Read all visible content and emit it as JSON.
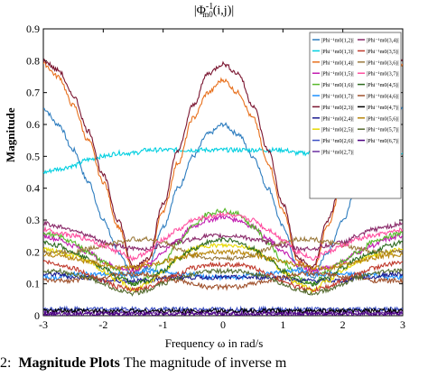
{
  "chart_data": {
    "type": "line",
    "title": "|Φ⁻¹ₘₒ(i,j)|",
    "title_text": "|Φ",
    "title_sup": "-1",
    "title_sub": "m0",
    "title_tail": "(i,j)|",
    "xlabel": "Frequency ω in rad/s",
    "ylabel": "Magnitude",
    "xlim": [
      -3,
      3
    ],
    "ylim": [
      0,
      0.9
    ],
    "xticks": [
      "-3",
      "-2",
      "-1",
      "0",
      "1",
      "2",
      "3"
    ],
    "yticks": [
      "0",
      "0.1",
      "0.2",
      "0.3",
      "0.4",
      "0.5",
      "0.6",
      "0.7",
      "0.8",
      "0.9"
    ],
    "grid": false,
    "legend_position": "top-right",
    "x": [
      -3,
      -2.75,
      -2.5,
      -2.25,
      -2,
      -1.75,
      -1.5,
      -1.25,
      -1,
      -0.75,
      -0.5,
      -0.25,
      0,
      0.25,
      0.5,
      0.75,
      1,
      1.25,
      1.5,
      1.75,
      2,
      2.25,
      2.5,
      2.75,
      3
    ],
    "series": [
      {
        "name": "|Phi⁻¹m0(1,2)|",
        "color": "#2e7dbf",
        "values": [
          0.65,
          0.6,
          0.52,
          0.42,
          0.3,
          0.2,
          0.12,
          0.15,
          0.28,
          0.4,
          0.5,
          0.57,
          0.6,
          0.57,
          0.5,
          0.4,
          0.28,
          0.15,
          0.12,
          0.2,
          0.3,
          0.42,
          0.52,
          0.6,
          0.65
        ]
      },
      {
        "name": "|Phi⁻¹m0(1,3)|",
        "color": "#00cfe0",
        "values": [
          0.45,
          0.46,
          0.47,
          0.49,
          0.5,
          0.51,
          0.51,
          0.52,
          0.52,
          0.52,
          0.52,
          0.52,
          0.52,
          0.52,
          0.52,
          0.52,
          0.52,
          0.51,
          0.51,
          0.52,
          0.52,
          0.51,
          0.51,
          0.51,
          0.51
        ]
      },
      {
        "name": "|Phi⁻¹m0(1,4)|",
        "color": "#e8701c",
        "values": [
          0.79,
          0.75,
          0.66,
          0.55,
          0.42,
          0.28,
          0.14,
          0.17,
          0.33,
          0.48,
          0.62,
          0.7,
          0.74,
          0.7,
          0.62,
          0.48,
          0.33,
          0.17,
          0.14,
          0.28,
          0.42,
          0.55,
          0.66,
          0.75,
          0.79
        ]
      },
      {
        "name": "|Phi⁻¹m0(1,5)|",
        "color": "#c21bb0",
        "values": [
          0.25,
          0.24,
          0.22,
          0.2,
          0.17,
          0.15,
          0.14,
          0.16,
          0.2,
          0.24,
          0.28,
          0.3,
          0.31,
          0.3,
          0.28,
          0.24,
          0.2,
          0.16,
          0.14,
          0.15,
          0.17,
          0.2,
          0.22,
          0.24,
          0.25
        ]
      },
      {
        "name": "|Phi⁻¹m0(1,6)|",
        "color": "#58b82a",
        "values": [
          0.26,
          0.25,
          0.23,
          0.2,
          0.17,
          0.14,
          0.1,
          0.12,
          0.17,
          0.23,
          0.28,
          0.32,
          0.33,
          0.32,
          0.28,
          0.23,
          0.17,
          0.12,
          0.1,
          0.14,
          0.17,
          0.2,
          0.23,
          0.25,
          0.26
        ]
      },
      {
        "name": "|Phi⁻¹m0(1,7)|",
        "color": "#1e90ff",
        "values": [
          0.12,
          0.12,
          0.13,
          0.13,
          0.13,
          0.13,
          0.13,
          0.14,
          0.14,
          0.13,
          0.13,
          0.12,
          0.12,
          0.12,
          0.13,
          0.13,
          0.14,
          0.14,
          0.13,
          0.13,
          0.13,
          0.13,
          0.13,
          0.12,
          0.12
        ]
      },
      {
        "name": "|Phi⁻¹m0(2,3)|",
        "color": "#7a1530",
        "values": [
          0.8,
          0.77,
          0.69,
          0.58,
          0.44,
          0.3,
          0.15,
          0.18,
          0.35,
          0.52,
          0.66,
          0.76,
          0.79,
          0.76,
          0.66,
          0.52,
          0.35,
          0.18,
          0.15,
          0.3,
          0.44,
          0.58,
          0.69,
          0.77,
          0.8
        ]
      },
      {
        "name": "|Phi⁻¹m0(2,4)|",
        "color": "#1a1a8f",
        "values": [
          0.13,
          0.13,
          0.12,
          0.12,
          0.11,
          0.11,
          0.11,
          0.11,
          0.12,
          0.12,
          0.12,
          0.12,
          0.12,
          0.12,
          0.12,
          0.12,
          0.12,
          0.11,
          0.11,
          0.11,
          0.11,
          0.12,
          0.12,
          0.13,
          0.13
        ]
      },
      {
        "name": "|Phi⁻¹m0(2,5)|",
        "color": "#e6d800",
        "values": [
          0.21,
          0.2,
          0.19,
          0.17,
          0.14,
          0.11,
          0.08,
          0.1,
          0.14,
          0.18,
          0.21,
          0.22,
          0.22,
          0.22,
          0.21,
          0.18,
          0.14,
          0.1,
          0.08,
          0.11,
          0.14,
          0.17,
          0.19,
          0.2,
          0.21
        ]
      },
      {
        "name": "|Phi⁻¹m0(2,6)|",
        "color": "#3b4fc4",
        "values": [
          0.02,
          0.02,
          0.02,
          0.02,
          0.02,
          0.02,
          0.02,
          0.02,
          0.02,
          0.02,
          0.02,
          0.02,
          0.02,
          0.02,
          0.02,
          0.02,
          0.02,
          0.02,
          0.02,
          0.02,
          0.02,
          0.02,
          0.02,
          0.02,
          0.02
        ]
      },
      {
        "name": "|Phi⁻¹m0(2,7)|",
        "color": "#6b2fa0",
        "values": [
          0.01,
          0.01,
          0.01,
          0.01,
          0.01,
          0.01,
          0.01,
          0.01,
          0.01,
          0.01,
          0.01,
          0.01,
          0.01,
          0.01,
          0.01,
          0.01,
          0.01,
          0.01,
          0.01,
          0.01,
          0.01,
          0.01,
          0.01,
          0.01,
          0.01
        ]
      },
      {
        "name": "|Phi⁻¹m0(3,4)|",
        "color": "#8a2a6a",
        "values": [
          0.29,
          0.28,
          0.27,
          0.25,
          0.23,
          0.22,
          0.21,
          0.21,
          0.22,
          0.23,
          0.24,
          0.25,
          0.25,
          0.25,
          0.24,
          0.23,
          0.22,
          0.21,
          0.21,
          0.22,
          0.23,
          0.25,
          0.27,
          0.28,
          0.29
        ]
      },
      {
        "name": "|Phi⁻¹m0(3,5)|",
        "color": "#c0392b",
        "values": [
          0.17,
          0.16,
          0.15,
          0.13,
          0.11,
          0.09,
          0.08,
          0.09,
          0.11,
          0.13,
          0.15,
          0.16,
          0.16,
          0.16,
          0.15,
          0.13,
          0.11,
          0.09,
          0.08,
          0.09,
          0.11,
          0.13,
          0.15,
          0.16,
          0.17
        ]
      },
      {
        "name": "|Phi⁻¹m0(3,6)|",
        "color": "#9b7a3c",
        "values": [
          0.2,
          0.2,
          0.2,
          0.21,
          0.22,
          0.23,
          0.24,
          0.24,
          0.23,
          0.21,
          0.19,
          0.18,
          0.18,
          0.18,
          0.19,
          0.21,
          0.23,
          0.24,
          0.24,
          0.23,
          0.22,
          0.21,
          0.2,
          0.2,
          0.2
        ]
      },
      {
        "name": "|Phi⁻¹m0(3,7)|",
        "color": "#ff4fa0",
        "values": [
          0.27,
          0.26,
          0.25,
          0.24,
          0.22,
          0.2,
          0.18,
          0.2,
          0.24,
          0.27,
          0.3,
          0.31,
          0.32,
          0.31,
          0.3,
          0.27,
          0.24,
          0.2,
          0.18,
          0.2,
          0.22,
          0.24,
          0.25,
          0.26,
          0.27
        ]
      },
      {
        "name": "|Phi⁻¹m0(4,5)|",
        "color": "#2d6a1f",
        "values": [
          0.23,
          0.22,
          0.2,
          0.18,
          0.15,
          0.12,
          0.1,
          0.11,
          0.14,
          0.18,
          0.21,
          0.23,
          0.24,
          0.23,
          0.21,
          0.18,
          0.14,
          0.11,
          0.1,
          0.12,
          0.15,
          0.18,
          0.2,
          0.22,
          0.23
        ]
      },
      {
        "name": "|Phi⁻¹m0(4,6)|",
        "color": "#a0522d",
        "values": [
          0.11,
          0.11,
          0.11,
          0.12,
          0.12,
          0.13,
          0.13,
          0.13,
          0.12,
          0.11,
          0.1,
          0.09,
          0.09,
          0.09,
          0.1,
          0.11,
          0.12,
          0.13,
          0.13,
          0.13,
          0.12,
          0.12,
          0.11,
          0.11,
          0.11
        ]
      },
      {
        "name": "|Phi⁻¹m0(4,7)|",
        "color": "#000000",
        "values": [
          0.015,
          0.015,
          0.015,
          0.015,
          0.015,
          0.015,
          0.015,
          0.015,
          0.015,
          0.015,
          0.015,
          0.015,
          0.015,
          0.015,
          0.015,
          0.015,
          0.015,
          0.015,
          0.015,
          0.015,
          0.015,
          0.015,
          0.015,
          0.015,
          0.015
        ]
      },
      {
        "name": "|Phi⁻¹m0(5,6)|",
        "color": "#b8860b",
        "values": [
          0.19,
          0.19,
          0.18,
          0.17,
          0.16,
          0.15,
          0.15,
          0.16,
          0.17,
          0.18,
          0.19,
          0.2,
          0.2,
          0.2,
          0.19,
          0.18,
          0.17,
          0.16,
          0.15,
          0.15,
          0.16,
          0.17,
          0.18,
          0.19,
          0.19
        ]
      },
      {
        "name": "|Phi⁻¹m0(5,7)|",
        "color": "#556b2f",
        "values": [
          0.14,
          0.14,
          0.13,
          0.12,
          0.1,
          0.08,
          0.07,
          0.08,
          0.1,
          0.12,
          0.13,
          0.14,
          0.14,
          0.14,
          0.13,
          0.12,
          0.1,
          0.08,
          0.07,
          0.08,
          0.1,
          0.12,
          0.13,
          0.14,
          0.14
        ]
      },
      {
        "name": "|Phi⁻¹m0(6,7)|",
        "color": "#4b0082",
        "values": [
          0.005,
          0.005,
          0.005,
          0.005,
          0.005,
          0.005,
          0.005,
          0.005,
          0.005,
          0.005,
          0.005,
          0.005,
          0.005,
          0.005,
          0.005,
          0.005,
          0.005,
          0.005,
          0.005,
          0.005,
          0.005,
          0.005,
          0.005,
          0.005,
          0.005
        ]
      }
    ]
  },
  "caption": {
    "prefix": "2:",
    "bold": "Magnitude Plots",
    "rest": "The magnitude of inverse m"
  }
}
